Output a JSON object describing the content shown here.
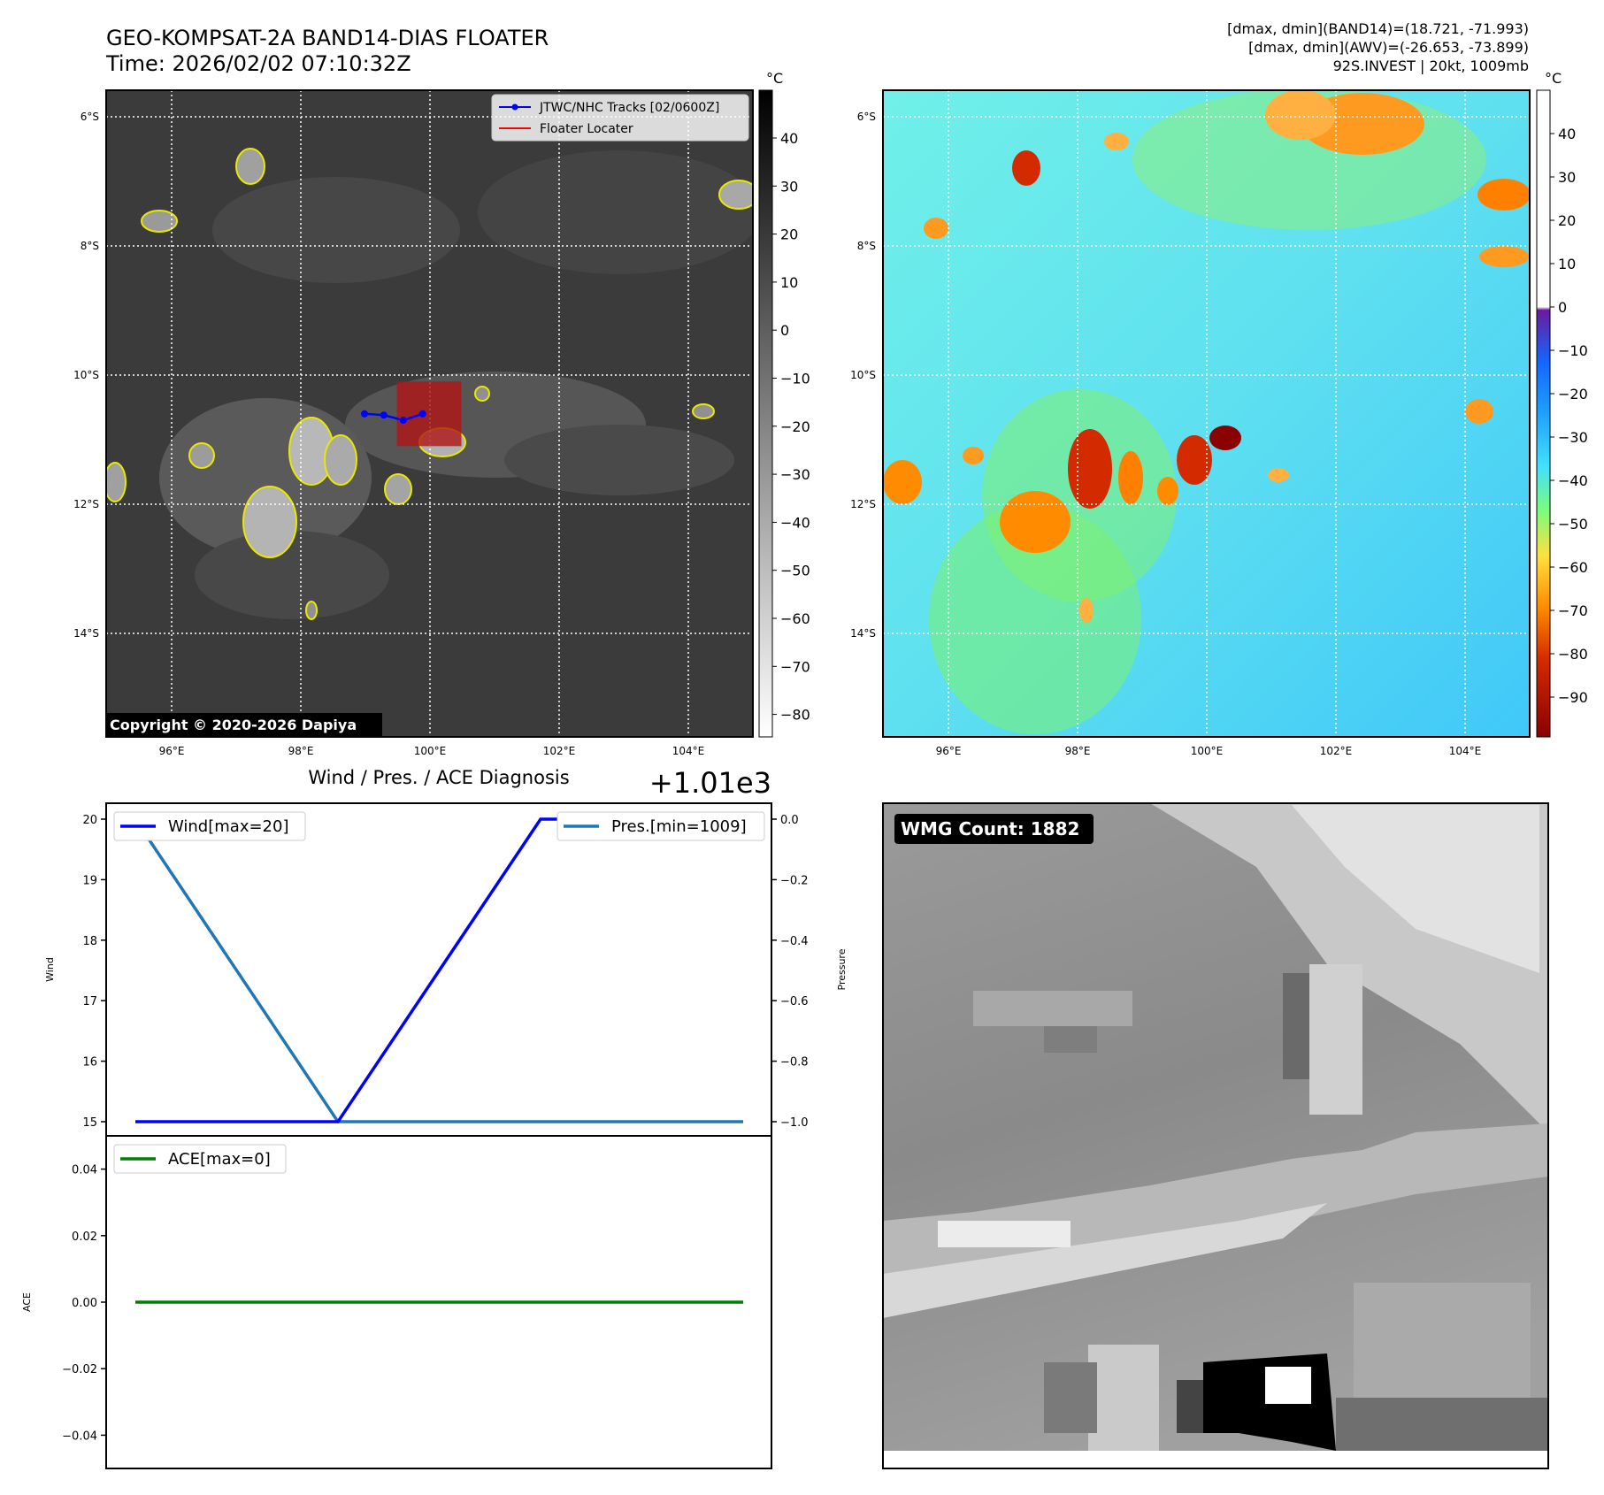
{
  "header": {
    "title_line1": "GEO-KOMPSAT-2A BAND14-DIAS FLOATER",
    "title_line2": "Time: 2026/02/02 07:10:32Z",
    "info_line1": "[dmax, dmin](BAND14)=(18.721, -71.993)",
    "info_line2": "[dmax, dmin](AWV)=(-26.653, -73.899)",
    "info_line3": "92S.INVEST | 20kt, 1009mb"
  },
  "map": {
    "lat_ticks": [
      "6°S",
      "8°S",
      "10°S",
      "12°S",
      "14°S"
    ],
    "lon_ticks": [
      "96°E",
      "98°E",
      "100°E",
      "102°E",
      "104°E"
    ],
    "copyright": "Copyright © 2020-2026 Dapiya",
    "legend_track": "JTWC/NHC Tracks [02/0600Z]",
    "legend_floater": "Floater Locater",
    "track_color": "#0000ff",
    "floater_color": "#ff0000",
    "track_points": [
      [
        99.0,
        -10.6
      ],
      [
        99.3,
        -10.62
      ],
      [
        99.6,
        -10.7
      ],
      [
        99.9,
        -10.6
      ]
    ],
    "floater_box": [
      99.5,
      100.5,
      -11.1,
      -10.1
    ]
  },
  "colorbar_left": {
    "unit": "°C",
    "ticks": [
      "40",
      "30",
      "20",
      "10",
      "0",
      "−10",
      "−20",
      "−30",
      "−40",
      "−50",
      "−60",
      "−70",
      "−80"
    ]
  },
  "colorbar_right": {
    "unit": "°C",
    "ticks": [
      "40",
      "30",
      "20",
      "10",
      "0",
      "−10",
      "−20",
      "−30",
      "−40",
      "−50",
      "−60",
      "−70",
      "−80",
      "−90"
    ]
  },
  "diag": {
    "title": "Wind / Pres. / ACE Diagnosis",
    "offset_label": "+1.01e3",
    "wind_ylabel": "Wind",
    "pressure_ylabel": "Pressure",
    "ace_ylabel": "ACE",
    "wind_ticks": [
      "20",
      "19",
      "18",
      "17",
      "16",
      "15"
    ],
    "pres_ticks": [
      "0.0",
      "−0.2",
      "−0.4",
      "−0.6",
      "−0.8",
      "−1.0"
    ],
    "ace_ticks": [
      "0.04",
      "0.02",
      "0.00",
      "−0.02",
      "−0.04"
    ],
    "legend_wind": "Wind[max=20]",
    "legend_pres": "Pres.[min=1009]",
    "legend_ace": "ACE[max=0]",
    "wind_color": "#0000ff",
    "pres_color": "#1f77b4",
    "ace_color": "#008000"
  },
  "wmg": {
    "label": "WMG Count: 1882"
  },
  "chart_data": [
    {
      "type": "line",
      "title": "Wind / Pres. / ACE Diagnosis",
      "ylabel": "Wind",
      "series": [
        {
          "name": "Wind[max=20]",
          "values": [
            15,
            15,
            20,
            20
          ]
        },
        {
          "name": "Pres.[min=1009]",
          "values": [
            1010,
            1009,
            1009,
            1009
          ]
        }
      ],
      "wind_ylim": [
        15,
        20
      ],
      "pressure_ylim": [
        1009,
        1010
      ]
    },
    {
      "type": "line",
      "ylabel": "ACE",
      "series": [
        {
          "name": "ACE[max=0]",
          "values": [
            0,
            0,
            0,
            0
          ]
        }
      ],
      "ylim": [
        -0.05,
        0.05
      ]
    }
  ]
}
